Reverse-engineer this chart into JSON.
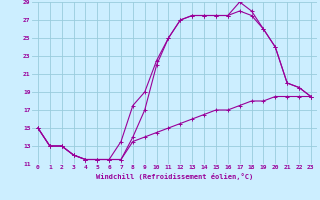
{
  "xlabel": "Windchill (Refroidissement éolien,°C)",
  "bg_color": "#cceeff",
  "grid_color": "#99ccdd",
  "line_color": "#990099",
  "xlim": [
    -0.5,
    23.5
  ],
  "ylim": [
    11,
    29
  ],
  "xticks": [
    0,
    1,
    2,
    3,
    4,
    5,
    6,
    7,
    8,
    9,
    10,
    11,
    12,
    13,
    14,
    15,
    16,
    17,
    18,
    19,
    20,
    21,
    22,
    23
  ],
  "yticks": [
    11,
    13,
    15,
    17,
    19,
    21,
    23,
    25,
    27,
    29
  ],
  "line1_x": [
    0,
    1,
    2,
    3,
    4,
    5,
    6,
    7,
    8,
    9,
    10,
    11,
    12,
    13,
    14,
    15,
    16,
    17,
    18,
    19,
    20,
    21,
    22,
    23
  ],
  "line1_y": [
    15,
    13,
    13,
    12,
    11.5,
    11.5,
    11.5,
    11.5,
    14,
    17,
    22,
    25,
    27,
    27.5,
    27.5,
    27.5,
    27.5,
    29,
    28,
    26,
    24,
    20,
    19.5,
    18.5
  ],
  "line2_x": [
    0,
    1,
    2,
    3,
    4,
    5,
    6,
    7,
    8,
    9,
    10,
    11,
    12,
    13,
    14,
    15,
    16,
    17,
    18,
    19,
    20,
    21,
    22,
    23
  ],
  "line2_y": [
    15,
    13,
    13,
    12,
    11.5,
    11.5,
    11.5,
    13.5,
    17.5,
    19,
    22.5,
    25,
    27,
    27.5,
    27.5,
    27.5,
    27.5,
    28,
    27.5,
    26,
    24,
    20,
    19.5,
    18.5
  ],
  "line3_x": [
    0,
    1,
    2,
    3,
    4,
    5,
    6,
    7,
    8,
    9,
    10,
    11,
    12,
    13,
    14,
    15,
    16,
    17,
    18,
    19,
    20,
    21,
    22,
    23
  ],
  "line3_y": [
    15,
    13,
    13,
    12,
    11.5,
    11.5,
    11.5,
    11.5,
    13.5,
    14,
    14.5,
    15,
    15.5,
    16,
    16.5,
    17,
    17,
    17.5,
    18,
    18,
    18.5,
    18.5,
    18.5,
    18.5
  ]
}
